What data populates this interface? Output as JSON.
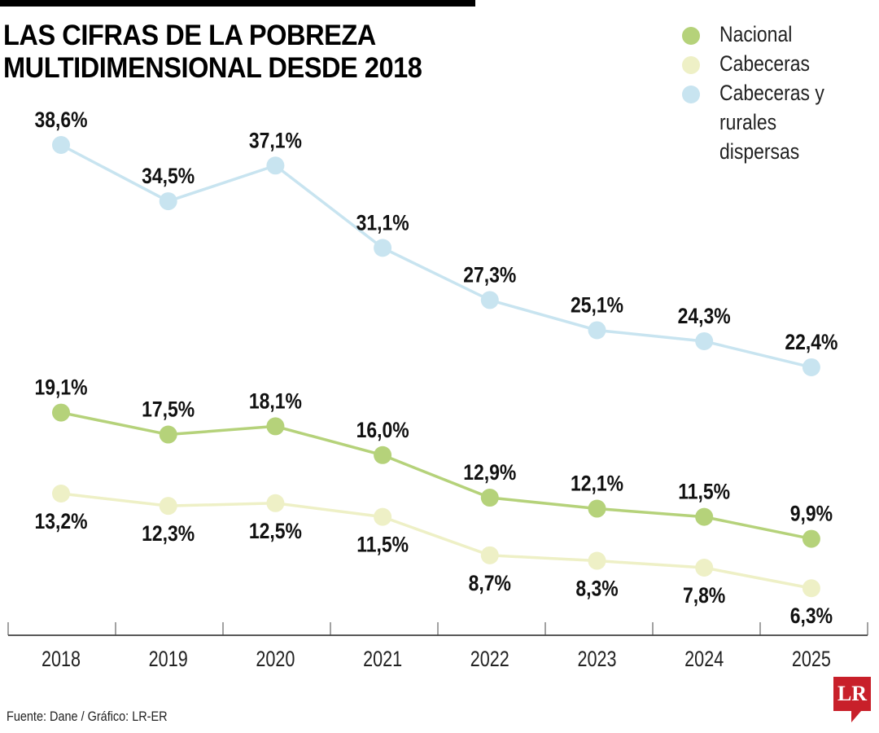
{
  "chart_data": {
    "type": "line",
    "title": "LAS CIFRAS DE LA POBREZA MULTIDIMENSIONAL DESDE 2018",
    "x": [
      "2018",
      "2019",
      "2020",
      "2021",
      "2022",
      "2023",
      "2024",
      "2025"
    ],
    "series": [
      {
        "name": "Nacional",
        "color": "#b5d27a",
        "values": [
          19.1,
          17.5,
          18.1,
          16.0,
          12.9,
          12.1,
          11.5,
          9.9
        ],
        "labels": [
          "19,1%",
          "17,5%",
          "18,1%",
          "16,0%",
          "12,9%",
          "12,1%",
          "11,5%",
          "9,9%"
        ],
        "label_position": "above"
      },
      {
        "name": "Cabeceras",
        "color": "#eef0c6",
        "values": [
          13.2,
          12.3,
          12.5,
          11.5,
          8.7,
          8.3,
          7.8,
          6.3
        ],
        "labels": [
          "13,2%",
          "12,3%",
          "12,5%",
          "11,5%",
          "8,7%",
          "8,3%",
          "7,8%",
          "6,3%"
        ],
        "label_position": "below"
      },
      {
        "name": "Cabeceras y\nrurales dispersas",
        "color": "#c8e4f0",
        "values": [
          38.6,
          34.5,
          37.1,
          31.1,
          27.3,
          25.1,
          24.3,
          22.4
        ],
        "labels": [
          "38,6%",
          "34,5%",
          "37,1%",
          "31,1%",
          "27,3%",
          "25,1%",
          "24,3%",
          "22,4%"
        ],
        "label_position": "above"
      }
    ],
    "legend_position": "top-right",
    "grid": false
  },
  "footer": {
    "source": "Fuente: Dane / Gráfico: LR-ER"
  },
  "logo": {
    "text": "LR",
    "color": "#c8202a"
  }
}
